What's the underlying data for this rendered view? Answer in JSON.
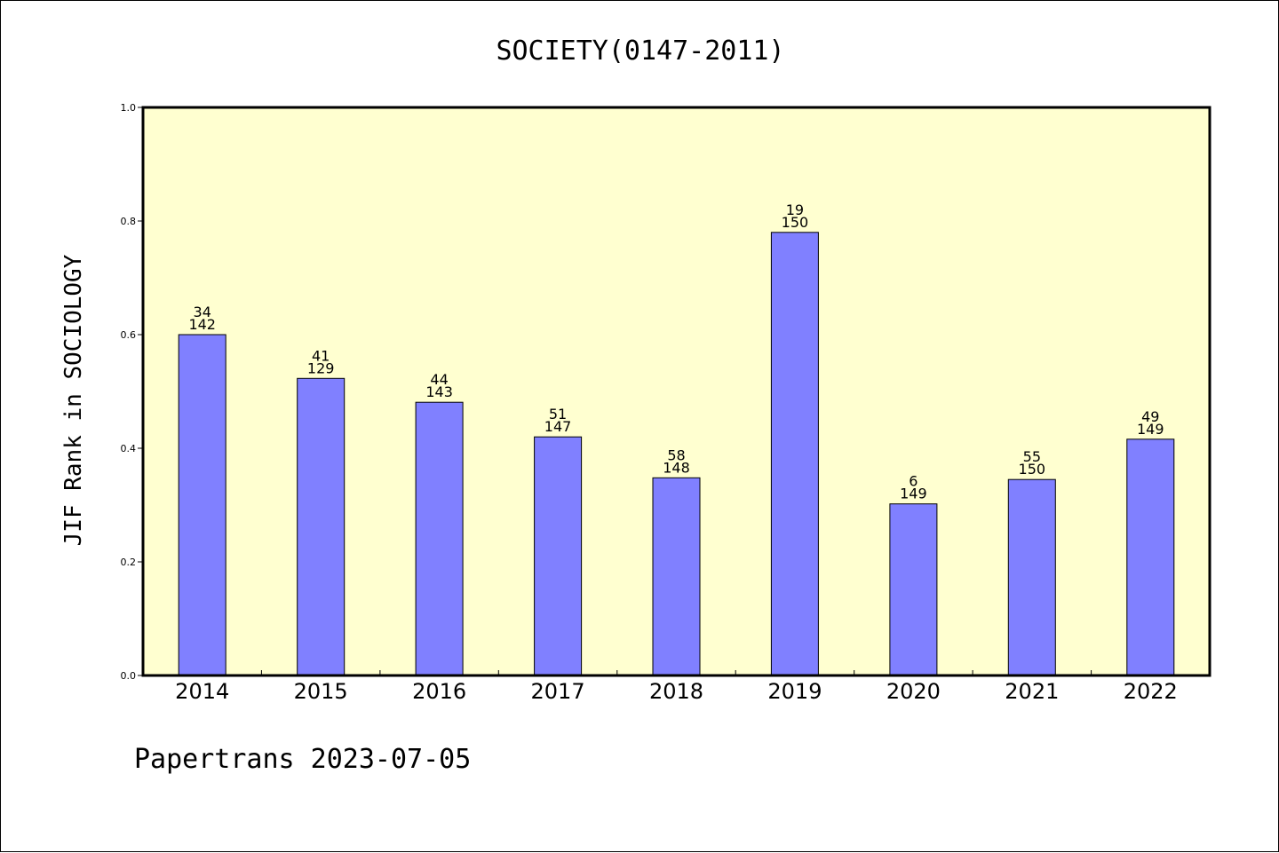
{
  "chart_data": {
    "type": "bar",
    "title": "SOCIETY(0147-2011)",
    "xlabel": "",
    "ylabel": "JIF Rank in SOCIOLOGY",
    "ylim": [
      0,
      1
    ],
    "yticks": [
      "0.0",
      "0.2",
      "0.4",
      "0.6",
      "0.8",
      "1.0"
    ],
    "ytick_values": [
      0,
      0.2,
      0.4,
      0.6,
      0.8,
      1.0
    ],
    "categories": [
      "2014",
      "2015",
      "2016",
      "2017",
      "2018",
      "2019",
      "2020",
      "2021",
      "2022"
    ],
    "values": [
      0.6,
      0.523,
      0.481,
      0.42,
      0.348,
      0.78,
      0.302,
      0.345,
      0.416
    ],
    "bar_labels": [
      {
        "rank": "34",
        "total": "142"
      },
      {
        "rank": "41",
        "total": "129"
      },
      {
        "rank": "44",
        "total": "143"
      },
      {
        "rank": "51",
        "total": "147"
      },
      {
        "rank": "58",
        "total": "148"
      },
      {
        "rank": "19",
        "total": "150"
      },
      {
        "rank": "6",
        "total": "149"
      },
      {
        "rank": "55",
        "total": "150"
      },
      {
        "rank": "49",
        "total": "149"
      }
    ],
    "grid": false,
    "colors": {
      "bar_fill": "#8080ff",
      "plot_background": "#ffffd0",
      "axis": "#000000"
    }
  },
  "footer": {
    "text": "Papertrans 2023-07-05"
  }
}
